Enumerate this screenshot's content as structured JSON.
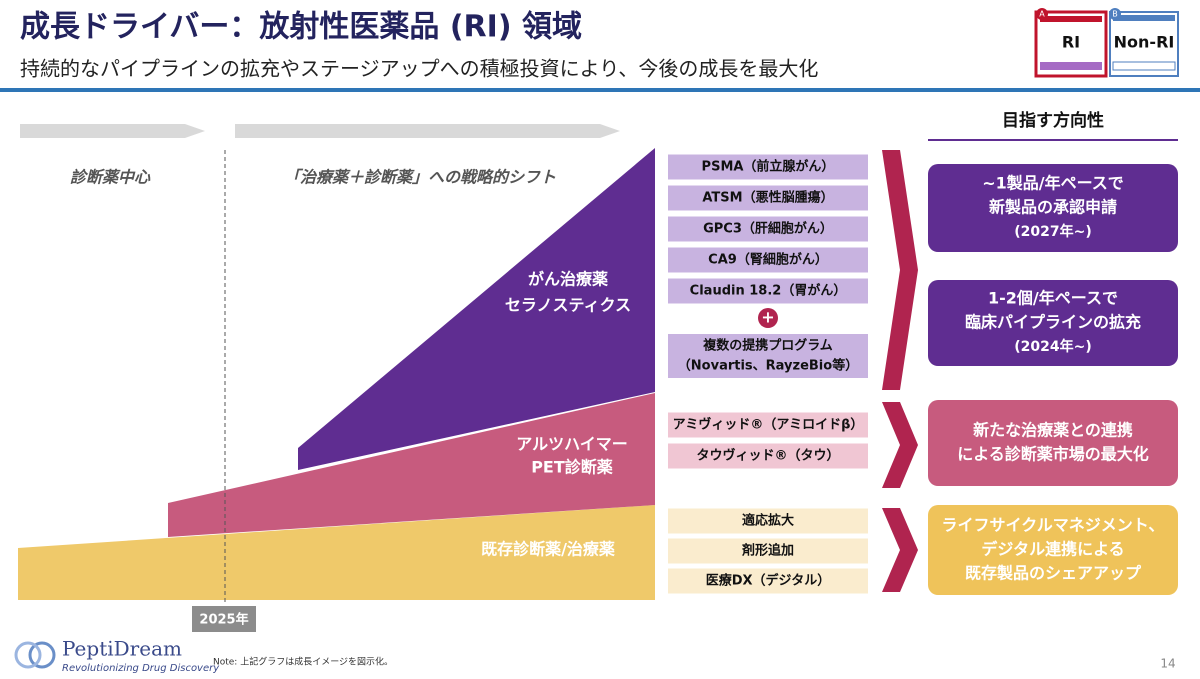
{
  "header": {
    "title": "成長ドライバー：放射性医薬品 (RI) 領域",
    "subtitle": "持続的なパイプラインの拡充やステージアップへの積極投資により、今後の成長を最大化"
  },
  "tabs": [
    {
      "letter": "A",
      "label": "RI"
    },
    {
      "letter": "B",
      "label": "Non-RI"
    }
  ],
  "phases": [
    "診断薬中心",
    "「治療薬＋診断薬」への戦略的シフト"
  ],
  "year": "2025年",
  "direction_header": "目指す方向性",
  "layers": [
    {
      "label": [
        "がん治療薬",
        "セラノスティクス"
      ],
      "items": [
        "PSMA（前立腺がん）",
        "ATSM（悪性脳腫瘍）",
        "GPC3（肝細胞がん）",
        "CA9（腎細胞がん）",
        "Claudin 18.2（胃がん）"
      ],
      "plus": "+",
      "extra": [
        "複数の提携プログラム",
        "（Novartis、RayzeBio等）"
      ]
    },
    {
      "label": [
        "アルツハイマー",
        "PET診断薬"
      ],
      "items": [
        "アミヴィッド®（アミロイドβ）",
        "タウヴィッド®（タウ）"
      ]
    },
    {
      "label": [
        "既存診断薬/治療薬"
      ],
      "items": [
        "適応拡大",
        "剤形追加",
        "医療DX（デジタル）"
      ]
    }
  ],
  "directions": [
    [
      "~1製品/年ペースで",
      "新製品の承認申請",
      "(2027年~)"
    ],
    [
      "1-2個/年ペースで",
      "臨床パイプラインの拡充",
      "(2024年~)"
    ],
    [
      "新たな治療薬との連携",
      "による診断薬市場の最大化"
    ],
    [
      "ライフサイクルマネジメント、",
      "デジタル連携による",
      "既存製品のシェアアップ"
    ]
  ],
  "footer": {
    "logo": "PeptiDream",
    "tagline": "Revolutionizing Drug Discovery",
    "note": "Note: 上記グラフは成長イメージを図示化。",
    "page": "14"
  }
}
